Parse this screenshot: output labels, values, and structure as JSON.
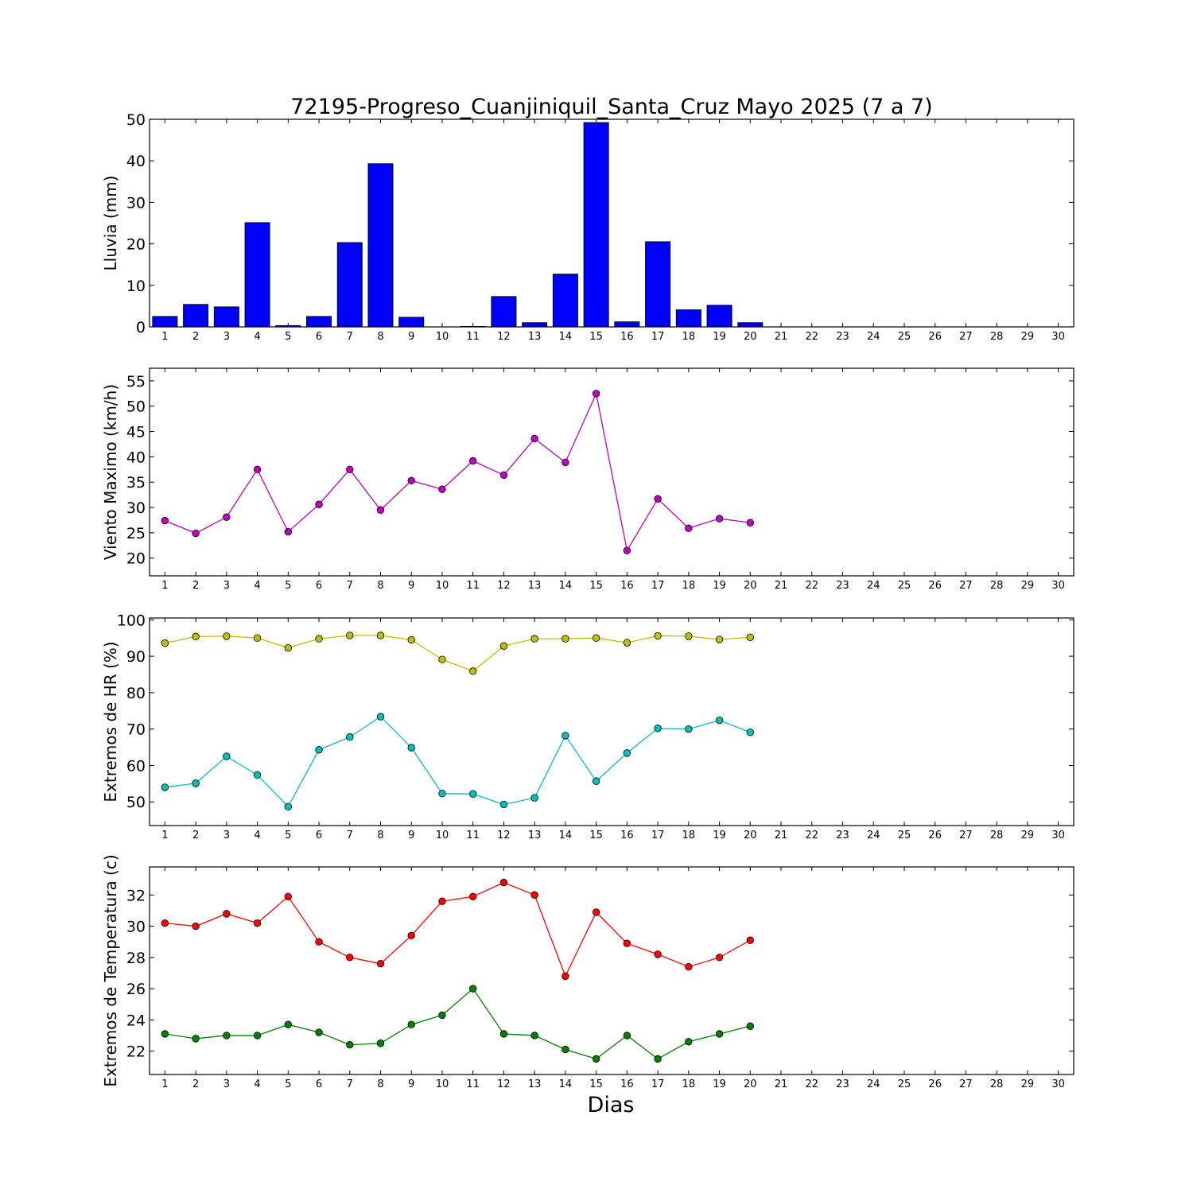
{
  "title": "72195-Progreso_Cuanjiniquil_Santa_Cruz Mayo 2025  (7 a 7)",
  "xlabel": "Dias",
  "chart_data": [
    {
      "type": "bar",
      "ylabel": "Lluvia (mm)",
      "ylim": [
        0,
        50
      ],
      "yticks": [
        0,
        10,
        20,
        30,
        40,
        50
      ],
      "xticks": [
        1,
        2,
        3,
        4,
        5,
        6,
        7,
        8,
        9,
        10,
        11,
        12,
        13,
        14,
        15,
        16,
        17,
        18,
        19,
        20,
        21,
        22,
        23,
        24,
        25,
        26,
        27,
        28,
        29,
        30
      ],
      "xlim": [
        0.5,
        30.5
      ],
      "grid": false,
      "series": [
        {
          "color": "#0000ff",
          "x": [
            1,
            2,
            3,
            4,
            5,
            6,
            7,
            8,
            9,
            10,
            11,
            12,
            13,
            14,
            15,
            16,
            17,
            18,
            19,
            20
          ],
          "values": [
            2.5,
            5.4,
            4.8,
            25.1,
            0.3,
            2.5,
            20.3,
            39.3,
            2.3,
            0.0,
            0.1,
            7.3,
            1.0,
            12.7,
            49.2,
            1.2,
            20.5,
            4.1,
            5.2,
            1.0
          ]
        }
      ]
    },
    {
      "type": "line",
      "ylabel": "Viento Maximo (km/h)",
      "ylim": [
        16.5,
        57.5
      ],
      "yticks": [
        20,
        25,
        30,
        35,
        40,
        45,
        50,
        55
      ],
      "xticks": [
        1,
        2,
        3,
        4,
        5,
        6,
        7,
        8,
        9,
        10,
        11,
        12,
        13,
        14,
        15,
        16,
        17,
        18,
        19,
        20,
        21,
        22,
        23,
        24,
        25,
        26,
        27,
        28,
        29,
        30
      ],
      "xlim": [
        0.5,
        30.5
      ],
      "grid": false,
      "series": [
        {
          "color": "#bf00bf",
          "x": [
            1,
            2,
            3,
            4,
            5,
            6,
            7,
            8,
            9,
            10,
            11,
            12,
            13,
            14,
            15,
            16,
            17,
            18,
            19,
            20
          ],
          "values": [
            27.4,
            24.9,
            28.1,
            37.5,
            25.2,
            30.6,
            37.5,
            29.5,
            35.3,
            33.6,
            39.2,
            36.4,
            43.6,
            38.9,
            52.5,
            21.5,
            31.7,
            25.9,
            27.8,
            27.0
          ]
        }
      ]
    },
    {
      "type": "line",
      "ylabel": "Extremos de HR (%)",
      "ylim": [
        43.5,
        100.5
      ],
      "yticks": [
        50,
        60,
        70,
        80,
        90,
        100
      ],
      "xticks": [
        1,
        2,
        3,
        4,
        5,
        6,
        7,
        8,
        9,
        10,
        11,
        12,
        13,
        14,
        15,
        16,
        17,
        18,
        19,
        20,
        21,
        22,
        23,
        24,
        25,
        26,
        27,
        28,
        29,
        30
      ],
      "xlim": [
        0.5,
        30.5
      ],
      "grid": false,
      "series": [
        {
          "color": "#bfbf00",
          "x": [
            1,
            2,
            3,
            4,
            5,
            6,
            7,
            8,
            9,
            10,
            11,
            12,
            13,
            14,
            15,
            16,
            17,
            18,
            19,
            20
          ],
          "values": [
            93.6,
            95.4,
            95.5,
            95.0,
            92.3,
            94.8,
            95.7,
            95.7,
            94.5,
            89.1,
            85.9,
            92.8,
            94.8,
            94.8,
            95.0,
            93.7,
            95.6,
            95.5,
            94.6,
            95.2
          ]
        },
        {
          "color": "#00bfbf",
          "x": [
            1,
            2,
            3,
            4,
            5,
            6,
            7,
            8,
            9,
            10,
            11,
            12,
            13,
            14,
            15,
            16,
            17,
            18,
            19,
            20
          ],
          "values": [
            54.0,
            55.1,
            62.5,
            57.4,
            48.7,
            64.3,
            67.8,
            73.4,
            64.9,
            52.3,
            52.2,
            49.3,
            51.1,
            68.2,
            55.7,
            63.4,
            70.2,
            70.0,
            72.4,
            69.1
          ]
        }
      ]
    },
    {
      "type": "line",
      "ylabel": "Extremos de Temperatura (c)",
      "ylim": [
        20.5,
        33.8
      ],
      "yticks": [
        22,
        24,
        26,
        28,
        30,
        32
      ],
      "xticks": [
        1,
        2,
        3,
        4,
        5,
        6,
        7,
        8,
        9,
        10,
        11,
        12,
        13,
        14,
        15,
        16,
        17,
        18,
        19,
        20,
        21,
        22,
        23,
        24,
        25,
        26,
        27,
        28,
        29,
        30
      ],
      "xlim": [
        0.5,
        30.5
      ],
      "grid": false,
      "series": [
        {
          "color": "#ff0000",
          "x": [
            1,
            2,
            3,
            4,
            5,
            6,
            7,
            8,
            9,
            10,
            11,
            12,
            13,
            14,
            15,
            16,
            17,
            18,
            19,
            20
          ],
          "values": [
            30.2,
            30.0,
            30.8,
            30.2,
            31.9,
            29.0,
            28.0,
            27.6,
            29.4,
            31.6,
            31.9,
            32.8,
            32.0,
            26.8,
            30.9,
            28.9,
            28.2,
            27.4,
            28.0,
            29.1
          ]
        },
        {
          "color": "#008000",
          "x": [
            1,
            2,
            3,
            4,
            5,
            6,
            7,
            8,
            9,
            10,
            11,
            12,
            13,
            14,
            15,
            16,
            17,
            18,
            19,
            20
          ],
          "values": [
            23.1,
            22.8,
            23.0,
            23.0,
            23.7,
            23.2,
            22.4,
            22.5,
            23.7,
            24.3,
            26.0,
            23.1,
            23.0,
            22.1,
            21.5,
            23.0,
            21.5,
            22.6,
            23.1,
            23.6
          ]
        }
      ]
    }
  ]
}
